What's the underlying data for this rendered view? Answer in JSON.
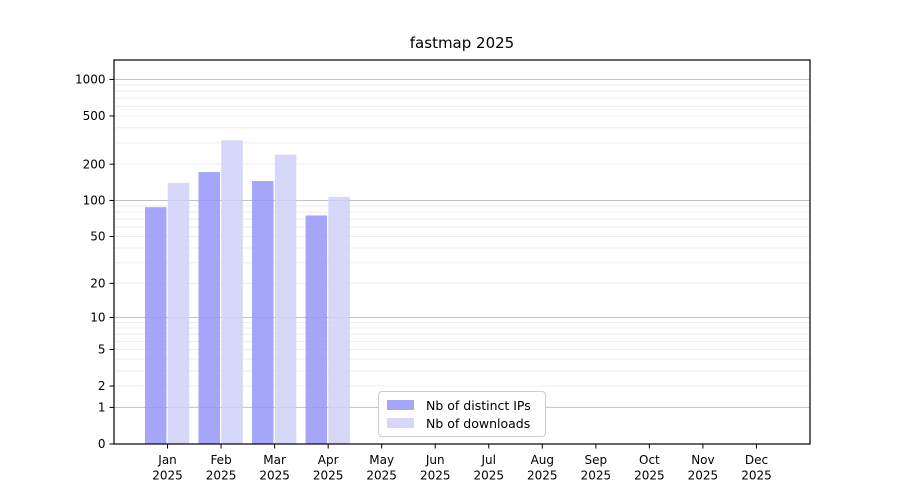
{
  "figure": {
    "background": "#ffffff"
  },
  "chart_data": {
    "type": "bar",
    "title": "fastmap 2025",
    "x_categories": [
      "Jan",
      "Feb",
      "Mar",
      "Apr",
      "May",
      "Jun",
      "Jul",
      "Aug",
      "Sep",
      "Oct",
      "Nov",
      "Dec"
    ],
    "x_year_line": "2025",
    "y_scale": "log10(1+y)",
    "y_ticks": [
      0,
      1,
      2,
      5,
      10,
      20,
      50,
      100,
      200,
      500,
      1000
    ],
    "y_minor_gridlines": [
      2,
      3,
      4,
      5,
      6,
      7,
      8,
      9,
      20,
      30,
      40,
      50,
      60,
      70,
      80,
      90,
      200,
      300,
      400,
      500,
      600,
      700,
      800,
      900
    ],
    "y_major_gridlines": [
      1,
      10,
      100,
      1000
    ],
    "ylim": [
      0,
      1446
    ],
    "grid": true,
    "legend_position": "lower center inside plot",
    "series": [
      {
        "name": "Nb of distinct IPs",
        "color": "#9595f8",
        "alpha": 0.85,
        "values": [
          88,
          172,
          145,
          75,
          null,
          null,
          null,
          null,
          null,
          null,
          null,
          null
        ]
      },
      {
        "name": "Nb of downloads",
        "color": "#d0d0f9",
        "alpha": 0.85,
        "values": [
          140,
          315,
          240,
          107,
          null,
          null,
          null,
          null,
          null,
          null,
          null,
          null
        ]
      }
    ],
    "colors": {
      "grid_major": "#c2c2c2",
      "grid_minor": "#ededed",
      "axis": "#000000",
      "text": "#000000",
      "legend_border": "#cccccc"
    }
  }
}
